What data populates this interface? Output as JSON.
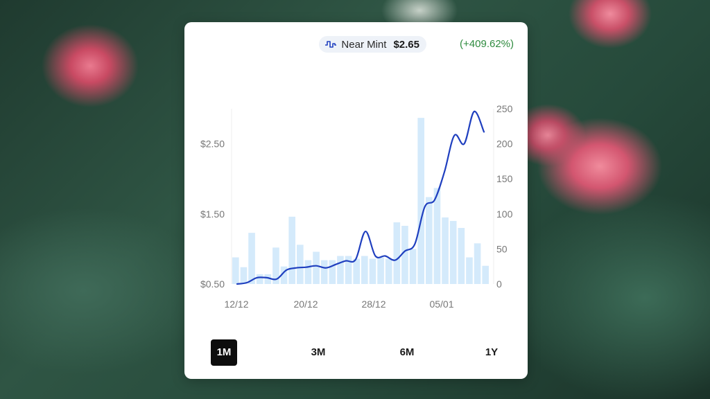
{
  "pill": {
    "condition": "Near Mint",
    "price": "$2.65",
    "change": "(+409.62%)",
    "icon": "price-line-icon"
  },
  "colors": {
    "line": "#1f3fbf",
    "bars": "#d4eafb",
    "positive": "#2e8b3e"
  },
  "tabs": [
    {
      "label": "1M",
      "active": true
    },
    {
      "label": "3M",
      "active": false
    },
    {
      "label": "6M",
      "active": false
    },
    {
      "label": "1Y",
      "active": false
    }
  ],
  "chart_data": {
    "type": "line+bar",
    "x_ticks": [
      "12/12",
      "20/12",
      "28/12",
      "05/01"
    ],
    "left_axis": {
      "tick_labels": [
        "$0.50",
        "$1.50",
        "$2.50"
      ],
      "ticks": [
        0.5,
        1.5,
        2.5
      ],
      "range": [
        0.5,
        3.0
      ]
    },
    "right_axis": {
      "tick_labels": [
        "0",
        "50",
        "100",
        "150",
        "200",
        "250"
      ],
      "ticks": [
        0,
        50,
        100,
        150,
        200,
        250
      ],
      "range": [
        0,
        250
      ]
    },
    "volume_bars": [
      38,
      24,
      73,
      14,
      14,
      52,
      25,
      96,
      56,
      34,
      46,
      34,
      34,
      40,
      40,
      36,
      40,
      36,
      38,
      36,
      88,
      83,
      50,
      237,
      124,
      137,
      95,
      90,
      80,
      38,
      58,
      26
    ],
    "price_line": [
      0.5,
      0.52,
      0.59,
      0.59,
      0.57,
      0.7,
      0.73,
      0.74,
      0.76,
      0.73,
      0.78,
      0.83,
      0.85,
      1.25,
      0.9,
      0.9,
      0.84,
      0.97,
      1.07,
      1.6,
      1.7,
      2.1,
      2.62,
      2.5,
      2.96,
      2.67
    ]
  }
}
